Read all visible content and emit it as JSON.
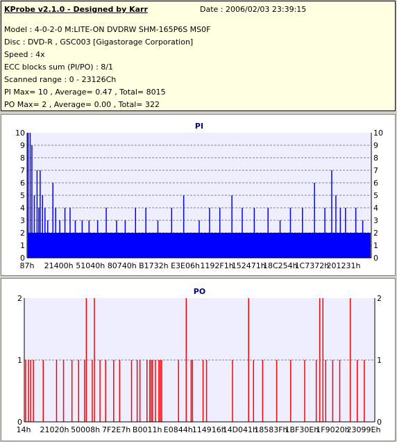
{
  "header": {
    "app_title": "KProbe v2.1.0 - Designed by Karr",
    "date": "Date : 2006/02/03 23:39:15",
    "lines": [
      "Model : 4-0-2-0 M:LITE-ON DVDRW SHM-165P6S MS0F",
      "Disc : DVD-R , GSC003 [Gigastorage Corporation]",
      "Speed : 4x",
      "ECC blocks sum (PI/PO) : 8/1",
      "Scanned range : 0 - 23126Ch",
      "PI Max= 10 , Average= 0.47 , Total= 8015",
      "PO Max= 2 , Average= 0.00 , Total= 322"
    ]
  },
  "chart_data": [
    {
      "type": "bar",
      "title": "PI",
      "title_color": "#000080",
      "bar_color": "#0000ff",
      "ylim": [
        0,
        10
      ],
      "yticks": [
        0,
        1,
        2,
        3,
        4,
        5,
        6,
        7,
        8,
        9,
        10
      ],
      "x_tick_labels": [
        "87h",
        "21400h",
        "51040h",
        "80740h",
        "B1732h",
        "E3E06h",
        "1192F1h",
        "152471h",
        "18C254h",
        "1C7372h",
        "201231h"
      ],
      "baseline": 2,
      "peaks": [
        {
          "x": 0.003,
          "y": 10
        },
        {
          "x": 0.009,
          "y": 10
        },
        {
          "x": 0.014,
          "y": 9
        },
        {
          "x": 0.021,
          "y": 5
        },
        {
          "x": 0.029,
          "y": 7
        },
        {
          "x": 0.034,
          "y": 4
        },
        {
          "x": 0.038,
          "y": 7
        },
        {
          "x": 0.045,
          "y": 5
        },
        {
          "x": 0.052,
          "y": 4
        },
        {
          "x": 0.06,
          "y": 3
        },
        {
          "x": 0.075,
          "y": 6
        },
        {
          "x": 0.083,
          "y": 4
        },
        {
          "x": 0.095,
          "y": 3
        },
        {
          "x": 0.11,
          "y": 4
        },
        {
          "x": 0.125,
          "y": 4
        },
        {
          "x": 0.14,
          "y": 3
        },
        {
          "x": 0.16,
          "y": 3
        },
        {
          "x": 0.18,
          "y": 3
        },
        {
          "x": 0.205,
          "y": 3
        },
        {
          "x": 0.23,
          "y": 4
        },
        {
          "x": 0.26,
          "y": 3
        },
        {
          "x": 0.285,
          "y": 3
        },
        {
          "x": 0.315,
          "y": 4
        },
        {
          "x": 0.345,
          "y": 4
        },
        {
          "x": 0.38,
          "y": 3
        },
        {
          "x": 0.42,
          "y": 4
        },
        {
          "x": 0.455,
          "y": 5
        },
        {
          "x": 0.5,
          "y": 3
        },
        {
          "x": 0.53,
          "y": 4
        },
        {
          "x": 0.56,
          "y": 4
        },
        {
          "x": 0.595,
          "y": 5
        },
        {
          "x": 0.625,
          "y": 4
        },
        {
          "x": 0.66,
          "y": 4
        },
        {
          "x": 0.7,
          "y": 4
        },
        {
          "x": 0.735,
          "y": 3
        },
        {
          "x": 0.765,
          "y": 4
        },
        {
          "x": 0.8,
          "y": 4
        },
        {
          "x": 0.835,
          "y": 6
        },
        {
          "x": 0.865,
          "y": 4
        },
        {
          "x": 0.885,
          "y": 7
        },
        {
          "x": 0.897,
          "y": 5
        },
        {
          "x": 0.91,
          "y": 4
        },
        {
          "x": 0.925,
          "y": 4
        },
        {
          "x": 0.955,
          "y": 4
        },
        {
          "x": 0.975,
          "y": 3
        }
      ]
    },
    {
      "type": "bar",
      "title": "PO",
      "title_color": "#000080",
      "bar_color": "#ff0000",
      "ylim": [
        0,
        2
      ],
      "yticks": [
        0,
        1,
        2
      ],
      "x_tick_labels": [
        "14h",
        "21020h",
        "50008h",
        "7F2E7h",
        "B0011h",
        "E0844h",
        "114916h",
        "14D041h",
        "18583Fh",
        "1BF30Eh",
        "1F9020h",
        "23099Eh"
      ],
      "bars": [
        {
          "x": 0.004,
          "y": 1
        },
        {
          "x": 0.012,
          "y": 1
        },
        {
          "x": 0.018,
          "y": 1
        },
        {
          "x": 0.026,
          "y": 1
        },
        {
          "x": 0.054,
          "y": 1
        },
        {
          "x": 0.092,
          "y": 1
        },
        {
          "x": 0.112,
          "y": 1
        },
        {
          "x": 0.136,
          "y": 1
        },
        {
          "x": 0.155,
          "y": 1
        },
        {
          "x": 0.172,
          "y": 1
        },
        {
          "x": 0.177,
          "y": 2
        },
        {
          "x": 0.194,
          "y": 1
        },
        {
          "x": 0.2,
          "y": 2
        },
        {
          "x": 0.216,
          "y": 1
        },
        {
          "x": 0.232,
          "y": 1
        },
        {
          "x": 0.255,
          "y": 1
        },
        {
          "x": 0.272,
          "y": 1
        },
        {
          "x": 0.306,
          "y": 1
        },
        {
          "x": 0.322,
          "y": 1
        },
        {
          "x": 0.33,
          "y": 1
        },
        {
          "x": 0.35,
          "y": 1
        },
        {
          "x": 0.358,
          "y": 1
        },
        {
          "x": 0.362,
          "y": 1
        },
        {
          "x": 0.366,
          "y": 1
        },
        {
          "x": 0.374,
          "y": 1
        },
        {
          "x": 0.384,
          "y": 1
        },
        {
          "x": 0.388,
          "y": 1
        },
        {
          "x": 0.392,
          "y": 1
        },
        {
          "x": 0.44,
          "y": 1
        },
        {
          "x": 0.462,
          "y": 2
        },
        {
          "x": 0.476,
          "y": 1
        },
        {
          "x": 0.48,
          "y": 1
        },
        {
          "x": 0.51,
          "y": 1
        },
        {
          "x": 0.52,
          "y": 1
        },
        {
          "x": 0.594,
          "y": 1
        },
        {
          "x": 0.64,
          "y": 2
        },
        {
          "x": 0.654,
          "y": 1
        },
        {
          "x": 0.68,
          "y": 1
        },
        {
          "x": 0.72,
          "y": 1
        },
        {
          "x": 0.76,
          "y": 1
        },
        {
          "x": 0.8,
          "y": 1
        },
        {
          "x": 0.833,
          "y": 1
        },
        {
          "x": 0.843,
          "y": 2
        },
        {
          "x": 0.852,
          "y": 2
        },
        {
          "x": 0.86,
          "y": 1
        },
        {
          "x": 0.88,
          "y": 1
        },
        {
          "x": 0.9,
          "y": 1
        },
        {
          "x": 0.93,
          "y": 2
        },
        {
          "x": 0.95,
          "y": 1
        },
        {
          "x": 0.97,
          "y": 1
        }
      ]
    }
  ]
}
